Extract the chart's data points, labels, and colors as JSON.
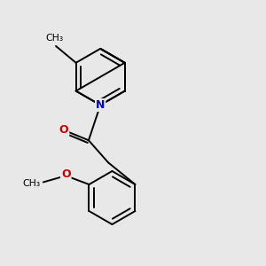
{
  "bg_color": "#e8e8e8",
  "bond_color": "#000000",
  "n_color": "#0000cc",
  "o_color": "#cc0000",
  "bond_width": 1.4,
  "figsize": [
    3.0,
    3.0
  ],
  "dpi": 100,
  "xlim": [
    0,
    10
  ],
  "ylim": [
    0,
    10
  ]
}
